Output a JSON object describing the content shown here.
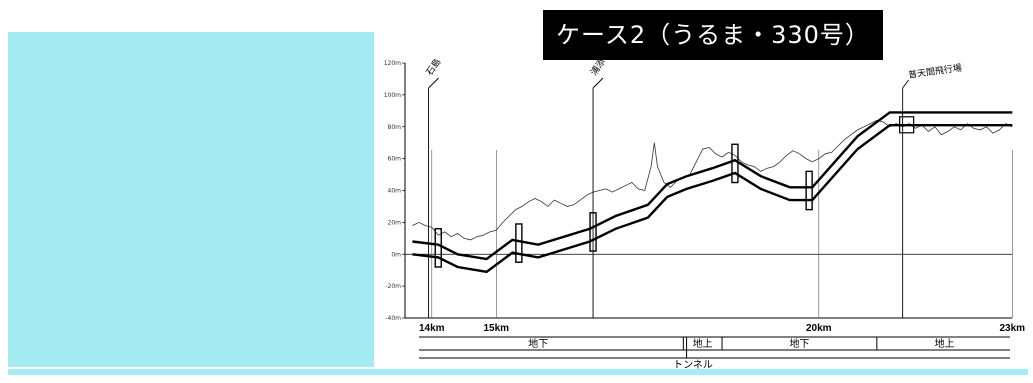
{
  "title": "ケース2（うるま・330号）",
  "y_ticks": [
    {
      "label": "120m",
      "value": 120
    },
    {
      "label": "100m",
      "value": 100
    },
    {
      "label": "80m",
      "value": 80
    },
    {
      "label": "60m",
      "value": 60
    },
    {
      "label": "40m",
      "value": 40
    },
    {
      "label": "20m",
      "value": 20
    },
    {
      "label": "0m",
      "value": 0
    },
    {
      "label": "-20m",
      "value": -20
    },
    {
      "label": "-40m",
      "value": -40
    }
  ],
  "km_ticks": [
    {
      "label": "14km",
      "km": 14
    },
    {
      "label": "15km",
      "km": 15
    },
    {
      "label": "20km",
      "km": 20
    },
    {
      "label": "23km",
      "km": 23
    }
  ],
  "places": [
    {
      "label": "石島",
      "km": 13.95
    },
    {
      "label": "浦添",
      "km": 16.5
    },
    {
      "label": "普天間飛行場",
      "km": 21.3
    }
  ],
  "segments": [
    {
      "label": "地下",
      "from_km": 13.7,
      "to_km": 17.6
    },
    {
      "label": "地上",
      "from_km": 17.9,
      "to_km": 18.5
    },
    {
      "label": "地下",
      "from_km": 18.5,
      "to_km": 20.9
    },
    {
      "label": "地上",
      "from_km": 20.9,
      "to_km": 23
    }
  ],
  "tunnel_label": "トンネル",
  "ground_profile": [
    [
      13.7,
      18
    ],
    [
      13.8,
      20
    ],
    [
      13.9,
      18
    ],
    [
      14.0,
      17
    ],
    [
      14.1,
      12
    ],
    [
      14.2,
      14
    ],
    [
      14.3,
      11
    ],
    [
      14.4,
      13
    ],
    [
      14.5,
      10
    ],
    [
      14.6,
      9
    ],
    [
      14.7,
      11
    ],
    [
      14.8,
      12
    ],
    [
      14.9,
      14
    ],
    [
      15.0,
      15
    ],
    [
      15.1,
      20
    ],
    [
      15.2,
      24
    ],
    [
      15.3,
      28
    ],
    [
      15.4,
      30
    ],
    [
      15.5,
      33
    ],
    [
      15.6,
      35
    ],
    [
      15.7,
      33
    ],
    [
      15.8,
      30
    ],
    [
      15.9,
      34
    ],
    [
      16.0,
      32
    ],
    [
      16.1,
      30
    ],
    [
      16.2,
      31
    ],
    [
      16.3,
      34
    ],
    [
      16.4,
      37
    ],
    [
      16.5,
      39
    ],
    [
      16.6,
      40
    ],
    [
      16.7,
      41
    ],
    [
      16.8,
      39
    ],
    [
      16.9,
      41
    ],
    [
      17.0,
      43
    ],
    [
      17.1,
      45
    ],
    [
      17.2,
      41
    ],
    [
      17.3,
      40
    ],
    [
      17.4,
      55
    ],
    [
      17.45,
      70
    ],
    [
      17.5,
      55
    ],
    [
      17.6,
      45
    ],
    [
      17.7,
      42
    ],
    [
      17.8,
      46
    ],
    [
      17.9,
      48
    ],
    [
      18.0,
      50
    ],
    [
      18.1,
      58
    ],
    [
      18.2,
      66
    ],
    [
      18.3,
      67
    ],
    [
      18.4,
      63
    ],
    [
      18.5,
      61
    ],
    [
      18.6,
      64
    ],
    [
      18.7,
      62
    ],
    [
      18.8,
      58
    ],
    [
      18.9,
      56
    ],
    [
      19.0,
      55
    ],
    [
      19.1,
      52
    ],
    [
      19.2,
      54
    ],
    [
      19.3,
      55
    ],
    [
      19.4,
      58
    ],
    [
      19.5,
      62
    ],
    [
      19.6,
      65
    ],
    [
      19.7,
      63
    ],
    [
      19.8,
      60
    ],
    [
      19.9,
      58
    ],
    [
      20.0,
      60
    ],
    [
      20.1,
      63
    ],
    [
      20.2,
      64
    ],
    [
      20.3,
      68
    ],
    [
      20.4,
      72
    ],
    [
      20.5,
      75
    ],
    [
      20.6,
      78
    ],
    [
      20.7,
      80
    ],
    [
      20.8,
      82
    ],
    [
      20.9,
      84
    ],
    [
      21.0,
      83
    ],
    [
      21.1,
      80
    ],
    [
      21.2,
      82
    ],
    [
      21.3,
      80
    ],
    [
      21.4,
      82
    ],
    [
      21.5,
      79
    ],
    [
      21.6,
      81
    ],
    [
      21.7,
      77
    ],
    [
      21.8,
      80
    ],
    [
      21.9,
      75
    ],
    [
      22.0,
      77
    ],
    [
      22.1,
      80
    ],
    [
      22.2,
      78
    ],
    [
      22.3,
      82
    ],
    [
      22.4,
      79
    ],
    [
      22.5,
      78
    ],
    [
      22.6,
      80
    ],
    [
      22.7,
      76
    ],
    [
      22.8,
      78
    ],
    [
      22.9,
      82
    ],
    [
      23.0,
      80
    ]
  ],
  "track_profile": [
    [
      13.7,
      4
    ],
    [
      14.1,
      2
    ],
    [
      14.4,
      -4
    ],
    [
      14.85,
      -7
    ],
    [
      15.25,
      5
    ],
    [
      15.65,
      2
    ],
    [
      16.45,
      12
    ],
    [
      16.85,
      20
    ],
    [
      17.35,
      27
    ],
    [
      17.65,
      40
    ],
    [
      17.95,
      45
    ],
    [
      18.35,
      50
    ],
    [
      18.7,
      55
    ],
    [
      19.1,
      45
    ],
    [
      19.55,
      38
    ],
    [
      19.9,
      38
    ],
    [
      20.6,
      70
    ],
    [
      21.1,
      85
    ],
    [
      21.3,
      85
    ],
    [
      23.0,
      85
    ]
  ]
}
